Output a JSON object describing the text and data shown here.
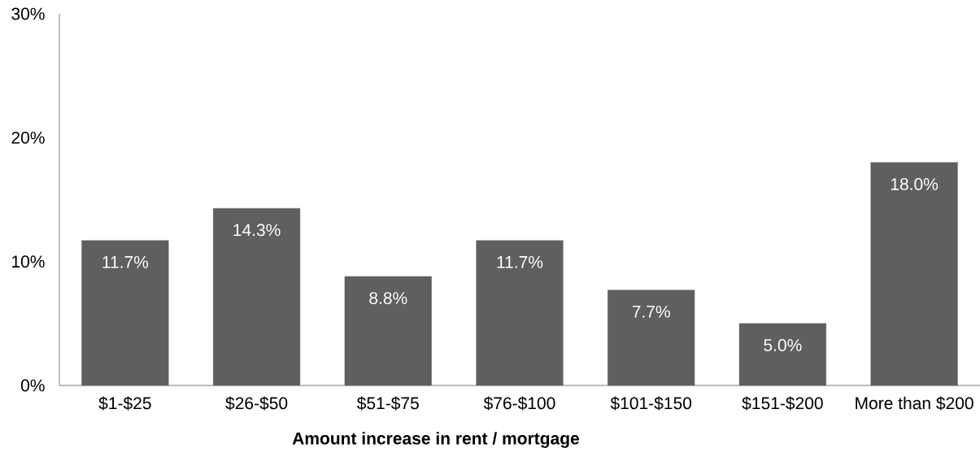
{
  "chart_data": {
    "type": "bar",
    "xlabel": "Amount increase in rent / mortgage",
    "categories": [
      "$1-$25",
      "$26-$50",
      "$51-$75",
      "$76-$100",
      "$101-$150",
      "$151-$200",
      "More than $200"
    ],
    "values": [
      11.7,
      14.3,
      8.8,
      11.7,
      7.7,
      5.0,
      18.0
    ],
    "value_labels": [
      "11.7%",
      "14.3%",
      "8.8%",
      "11.7%",
      "7.7%",
      "5.0%",
      "18.0%"
    ],
    "color": "#5f5f5f",
    "ylim": [
      0,
      30
    ],
    "yticks": [
      {
        "value": 0,
        "label": "0%"
      },
      {
        "value": 10,
        "label": "10%"
      },
      {
        "value": 20,
        "label": "20%"
      },
      {
        "value": 30,
        "label": "30%"
      }
    ]
  }
}
